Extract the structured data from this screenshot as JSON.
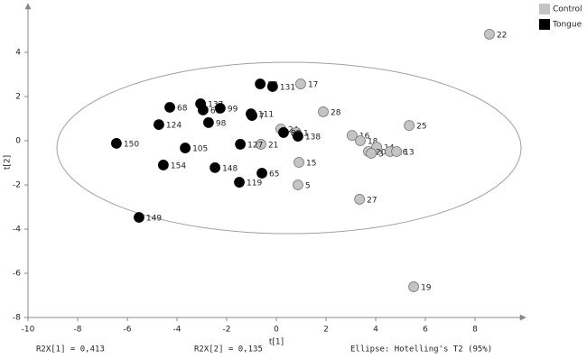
{
  "chart_data": {
    "type": "scatter",
    "x_label": "t[1]",
    "y_label": "t[2]",
    "annotations": [
      "R2X[1] = 0,413",
      "R2X[2] = 0,135",
      "Ellipse: Hotelling's T2 (95%)"
    ],
    "xlim": [
      -10,
      9.8
    ],
    "ylim": [
      -8,
      6
    ],
    "xticks": [
      -10,
      -8,
      -6,
      -4,
      -2,
      0,
      2,
      4,
      6,
      8
    ],
    "yticks": [
      -8,
      -6,
      -4,
      -2,
      0,
      2,
      4
    ],
    "legend": "top-right",
    "series": [
      {
        "name": "Control",
        "color": "#c4c4c4",
        "labels": [
          "22",
          "17",
          "28",
          "25",
          "24",
          "1",
          "16",
          "18",
          "14",
          "20",
          "3",
          "26",
          "13",
          "21",
          "15",
          "5",
          "27",
          "19"
        ],
        "x": [
          8.58,
          0.98,
          1.89,
          5.35,
          0.18,
          0.8,
          3.05,
          3.38,
          4.04,
          3.71,
          3.82,
          4.58,
          4.84,
          -0.62,
          0.91,
          0.87,
          3.35,
          5.53
        ],
        "values": [
          4.82,
          2.57,
          1.31,
          0.69,
          0.53,
          0.37,
          0.24,
          0,
          -0.29,
          -0.49,
          -0.57,
          -0.49,
          -0.49,
          -0.16,
          -0.98,
          -2,
          -2.65,
          -6.61
        ]
      },
      {
        "name": "Tongue",
        "color": "#000000",
        "labels": [
          "83",
          "131",
          "137",
          "61",
          "99",
          "111",
          "7",
          "68",
          "124",
          "98",
          "150",
          "105",
          "127",
          "82",
          "138",
          "154",
          "148",
          "119",
          "65",
          "149"
        ],
        "x": [
          -0.65,
          -0.15,
          -3.05,
          -2.95,
          -2.26,
          -1.02,
          -0.98,
          -4.29,
          -4.73,
          -2.73,
          -6.44,
          -3.67,
          -1.45,
          0.29,
          0.87,
          -4.55,
          -2.47,
          -1.49,
          -0.58,
          -5.53
        ],
        "values": [
          2.57,
          2.45,
          1.67,
          1.39,
          1.47,
          1.22,
          1.14,
          1.51,
          0.73,
          0.82,
          -0.12,
          -0.33,
          -0.16,
          0.37,
          0.2,
          -1.1,
          -1.22,
          -1.88,
          -1.47,
          -3.47
        ]
      }
    ]
  }
}
